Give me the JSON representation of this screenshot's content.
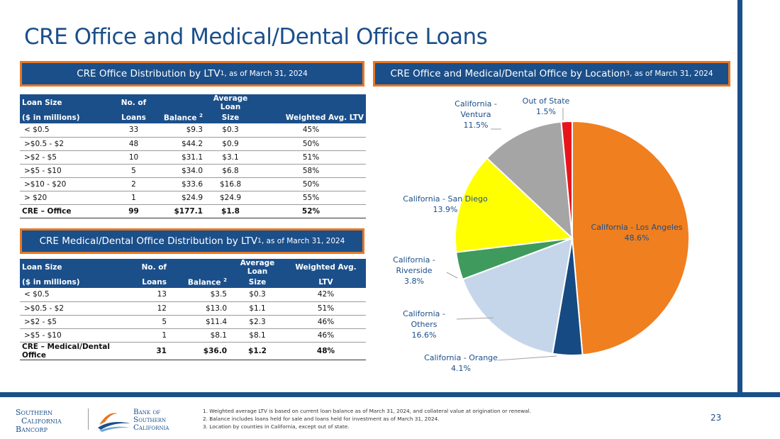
{
  "title": "CRE Office and Medical/Dental Office Loans",
  "header_ltv": {
    "text": "CRE Office Distribution by LTV",
    "sup": "1",
    "suffix": ", as of March 31, 2024"
  },
  "header_location": {
    "text": "CRE Office and Medical/Dental Office by Location ",
    "sup": "3",
    "suffix": ", as of March 31, 2024"
  },
  "header_med": {
    "text": "CRE Medical/Dental Office Distribution by LTV",
    "sup": "1",
    "suffix": ", as of March 31, 2024"
  },
  "office_table": {
    "headers": {
      "loan_size_1": "Loan Size",
      "loan_size_2": "($ in millions)",
      "no_of_1": "No. of",
      "no_of_2": "Loans",
      "balance": "Balance",
      "balance_sup": "2",
      "avg_1": "Average Loan",
      "avg_2": "Size",
      "wltv_1": "",
      "wltv_2": "Weighted Avg. LTV"
    },
    "rows": [
      [
        "< $0.5",
        "33",
        "$9.3",
        "$0.3",
        "45%"
      ],
      [
        ">$0.5 - $2",
        "48",
        "$44.2",
        "$0.9",
        "50%"
      ],
      [
        ">$2 - $5",
        "10",
        "$31.1",
        "$3.1",
        "51%"
      ],
      [
        ">$5 - $10",
        "5",
        "$34.0",
        "$6.8",
        "58%"
      ],
      [
        ">$10 - $20",
        "2",
        "$33.6",
        "$16.8",
        "50%"
      ],
      [
        "> $20",
        "1",
        "$24.9",
        "$24.9",
        "55%"
      ]
    ],
    "total": [
      "CRE – Office",
      "99",
      "$177.1",
      "$1.8",
      "52%"
    ]
  },
  "med_table": {
    "headers": {
      "loan_size_1": "Loan Size",
      "loan_size_2": "($ in millions)",
      "no_of_1": "No. of",
      "no_of_2": "Loans",
      "balance": "Balance",
      "balance_sup": "2",
      "avg_1": "Average Loan",
      "avg_2": "Size",
      "wltv_1": "Weighted Avg.",
      "wltv_2": "LTV"
    },
    "rows": [
      [
        "< $0.5",
        "13",
        "$3.5",
        "$0.3",
        "42%"
      ],
      [
        ">$0.5 - $2",
        "12",
        "$13.0",
        "$1.1",
        "51%"
      ],
      [
        ">$2 - $5",
        "5",
        "$11.4",
        "$2.3",
        "46%"
      ],
      [
        ">$5 - $10",
        "1",
        "$8.1",
        "$8.1",
        "46%"
      ]
    ],
    "total": [
      "CRE – Medical/Dental Office",
      "31",
      "$36.0",
      "$1.2",
      "48%"
    ]
  },
  "chart_data": {
    "type": "pie",
    "slices": [
      {
        "label": "California - Los Angeles",
        "value": 48.6,
        "display": "48.6%",
        "color": "#f07f1f"
      },
      {
        "label": "California - Orange",
        "value": 4.1,
        "display": "4.1%",
        "color": "#164a82"
      },
      {
        "label": "California - Others",
        "value": 16.6,
        "display": "16.6%",
        "color": "#c6d6ea"
      },
      {
        "label": "California - Riverside",
        "value": 3.8,
        "display": "3.8%",
        "color": "#3e9b5d"
      },
      {
        "label": "California - San Diego",
        "value": 13.9,
        "display": "13.9%",
        "color": "#ffff00"
      },
      {
        "label": "California - Ventura",
        "value": 11.5,
        "display": "11.5%",
        "color": "#a5a5a5"
      },
      {
        "label": "Out of State",
        "value": 1.5,
        "display": "1.5%",
        "color": "#e8141c"
      }
    ]
  },
  "footer": {
    "logo1": [
      "Southern",
      "California",
      "Bancorp"
    ],
    "logo2": [
      "Bank of",
      "Southern",
      "California"
    ],
    "notes": [
      "1.  Weighted average LTV is based on current loan balance as of March 31, 2024, and collateral value at origination or renewal.",
      "2.  Balance includes loans held for sale and loans held for investment as of March 31, 2024.",
      "3.  Location by counties in California, except out of state."
    ],
    "page_number": "23"
  }
}
